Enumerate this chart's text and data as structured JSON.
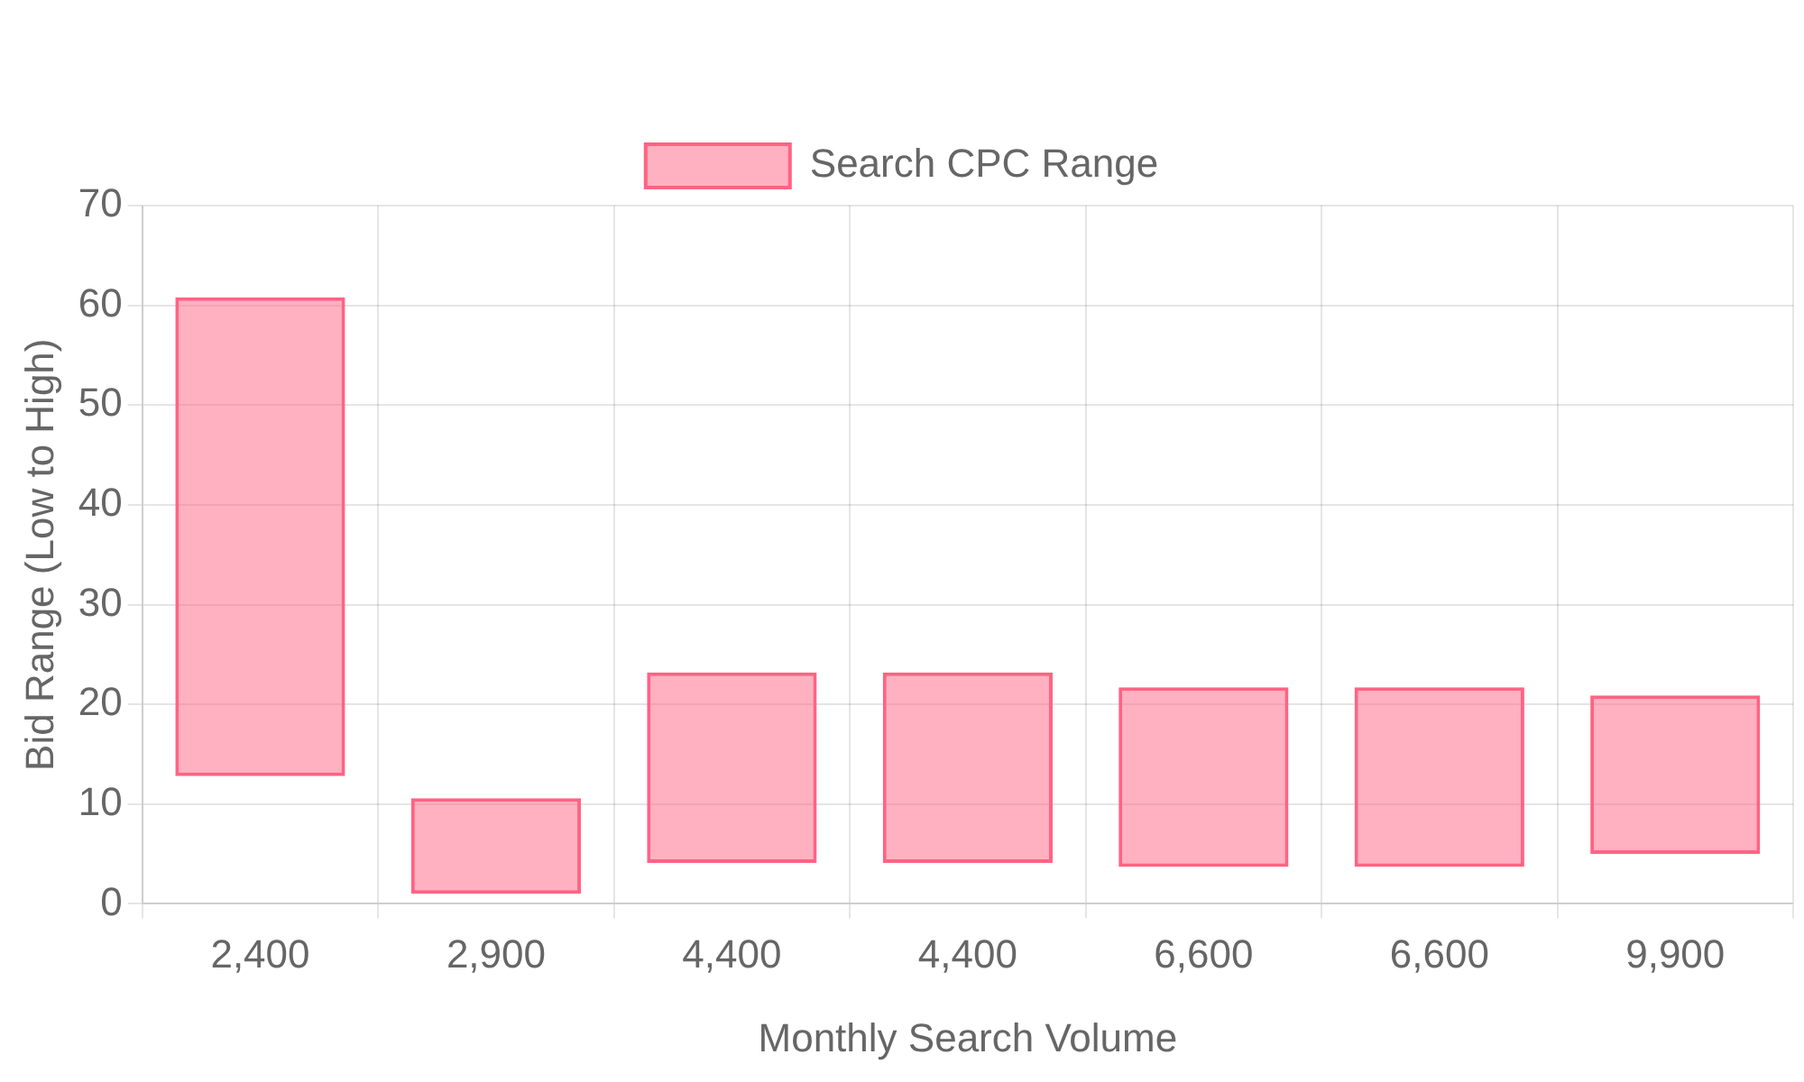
{
  "chart_data": {
    "type": "bar",
    "xlabel": "Monthly Search Volume",
    "ylabel": "Bid Range (Low to High)",
    "categories": [
      "2,400",
      "2,900",
      "4,400",
      "4,400",
      "6,600",
      "6,600",
      "9,900"
    ],
    "series": [
      {
        "name": "Search CPC Range",
        "color": "#ff6384",
        "values": [
          48,
          9.6,
          19.1,
          19.1,
          18,
          18,
          15.9
        ],
        "base": [
          12.8,
          1.0,
          4.1,
          4.1,
          3.7,
          3.7,
          5.0
        ]
      }
    ],
    "ylim": [
      0,
      70
    ],
    "yticks": [
      0,
      10,
      20,
      30,
      40,
      50,
      60,
      70
    ],
    "grid": true,
    "legend": "top"
  }
}
